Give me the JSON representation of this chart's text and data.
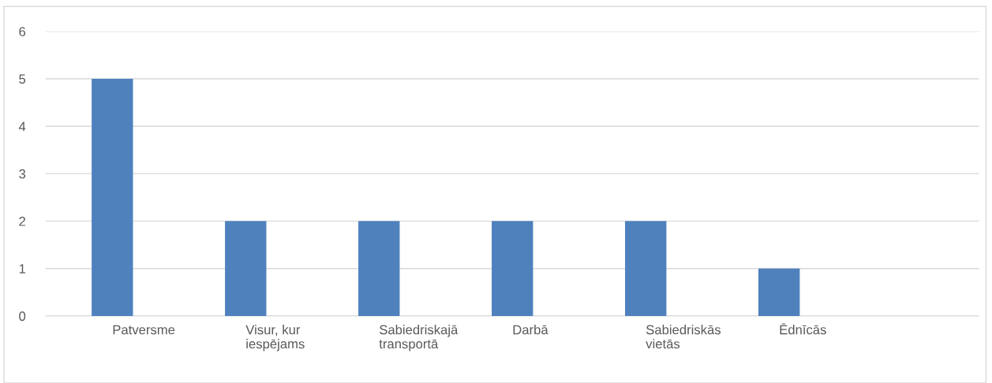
{
  "chart_data": {
    "type": "bar",
    "categories": [
      "Patversme",
      "Visur, kur\niespējams",
      "Sabiedriskajā\ntransportā",
      "Darbā",
      "Sabiedriskās\nvietās",
      "Ēdnīcās",
      null
    ],
    "values": [
      5,
      2,
      2,
      2,
      2,
      1,
      null
    ],
    "color": "#4f81bd",
    "ylim": [
      0,
      6
    ],
    "yticks": [
      0,
      1,
      2,
      3,
      4,
      5,
      6
    ],
    "grid": "y",
    "legend": false
  }
}
